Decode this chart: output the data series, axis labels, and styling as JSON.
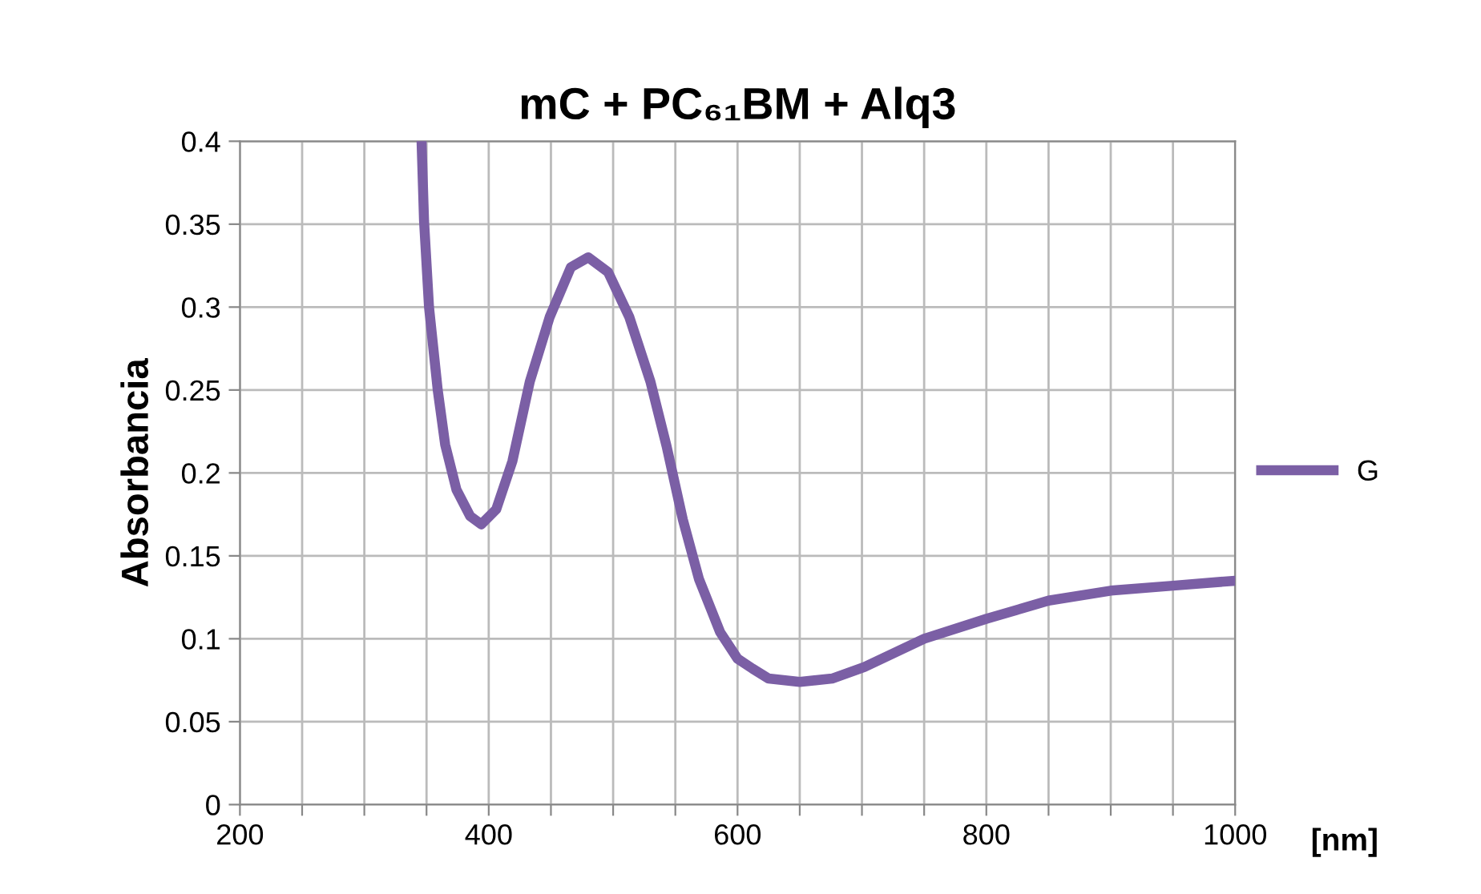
{
  "chart_data": {
    "type": "line",
    "title": "mC + PC₆₁BM + Alq3",
    "xlabel": "[nm]",
    "ylabel": "Absorbancia",
    "xlim": [
      200,
      1000
    ],
    "xticks": [
      200,
      {
        "value": 250,
        "label": null
      },
      {
        "value": 300,
        "label": null
      },
      {
        "value": 350,
        "label": null
      },
      400,
      {
        "value": 450,
        "label": null
      },
      {
        "value": 500,
        "label": null
      },
      {
        "value": 550,
        "label": null
      },
      600,
      {
        "value": 650,
        "label": null
      },
      {
        "value": 700,
        "label": null
      },
      {
        "value": 750,
        "label": null
      },
      800,
      {
        "value": 850,
        "label": null
      },
      {
        "value": 900,
        "label": null
      },
      {
        "value": 950,
        "label": null
      },
      1000
    ],
    "ylim": [
      0,
      0.4
    ],
    "yticks": [
      0,
      0.05,
      0.1,
      0.15,
      0.2,
      0.25,
      0.3,
      0.35,
      0.4
    ],
    "grid": true,
    "legend": "right",
    "marker": "none",
    "line_style": "solid",
    "series": [
      {
        "name": "G",
        "color": "#7b5fa5",
        "x": [
          346,
          348,
          352,
          359,
          365,
          374,
          385,
          394,
          406,
          419,
          433,
          449,
          466,
          480,
          496,
          513,
          530,
          543,
          556,
          569,
          586,
          600,
          612,
          625,
          650,
          676,
          702,
          750,
          800,
          850,
          900,
          950,
          1000
        ],
        "values": [
          0.4,
          0.352,
          0.3,
          0.25,
          0.217,
          0.19,
          0.174,
          0.169,
          0.178,
          0.207,
          0.255,
          0.294,
          0.324,
          0.33,
          0.321,
          0.294,
          0.255,
          0.216,
          0.172,
          0.136,
          0.104,
          0.088,
          0.082,
          0.076,
          0.074,
          0.076,
          0.083,
          0.1,
          0.112,
          0.123,
          0.129,
          0.132,
          0.135
        ]
      }
    ]
  }
}
